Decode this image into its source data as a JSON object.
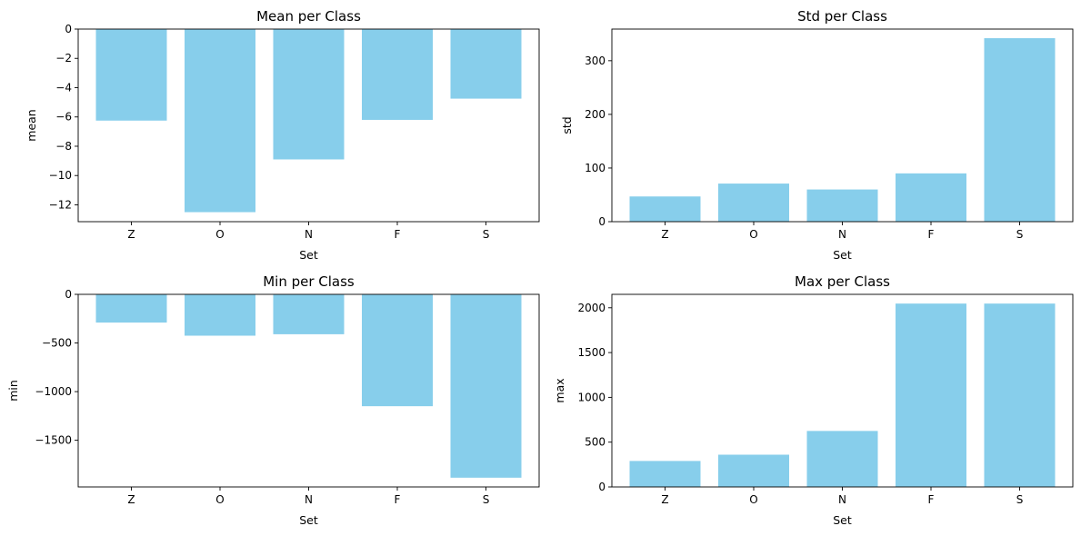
{
  "colors": {
    "bar": "#87ceeb",
    "axis": "#000000",
    "background": "#ffffff"
  },
  "chart_data": [
    {
      "type": "bar",
      "title": "Mean per Class",
      "xlabel": "Set",
      "ylabel": "mean",
      "categories": [
        "Z",
        "O",
        "N",
        "F",
        "S"
      ],
      "values": [
        -6.25,
        -12.5,
        -8.9,
        -6.2,
        -4.75
      ],
      "ylim": [
        -13.15,
        0
      ],
      "yticks": [
        0,
        -2,
        -4,
        -6,
        -8,
        -10,
        -12
      ],
      "ytick_labels": [
        "0",
        "−2",
        "−4",
        "−6",
        "−8",
        "−10",
        "−12"
      ],
      "grid": false
    },
    {
      "type": "bar",
      "title": "Std per Class",
      "xlabel": "Set",
      "ylabel": "std",
      "categories": [
        "Z",
        "O",
        "N",
        "F",
        "S"
      ],
      "values": [
        47,
        71,
        60,
        90,
        342
      ],
      "ylim": [
        0,
        359
      ],
      "yticks": [
        0,
        100,
        200,
        300
      ],
      "ytick_labels": [
        "0",
        "100",
        "200",
        "300"
      ],
      "grid": false
    },
    {
      "type": "bar",
      "title": "Min per Class",
      "xlabel": "Set",
      "ylabel": "min",
      "categories": [
        "Z",
        "O",
        "N",
        "F",
        "S"
      ],
      "values": [
        -290,
        -425,
        -410,
        -1150,
        -1885
      ],
      "ylim": [
        -1980,
        0
      ],
      "yticks": [
        0,
        -500,
        -1000,
        -1500
      ],
      "ytick_labels": [
        "0",
        "−500",
        "−1000",
        "−1500"
      ],
      "grid": false
    },
    {
      "type": "bar",
      "title": "Max per Class",
      "xlabel": "Set",
      "ylabel": "max",
      "categories": [
        "Z",
        "O",
        "N",
        "F",
        "S"
      ],
      "values": [
        290,
        360,
        625,
        2047,
        2047
      ],
      "ylim": [
        0,
        2150
      ],
      "yticks": [
        0,
        500,
        1000,
        1500,
        2000
      ],
      "ytick_labels": [
        "0",
        "500",
        "1000",
        "1500",
        "2000"
      ],
      "grid": false
    }
  ]
}
